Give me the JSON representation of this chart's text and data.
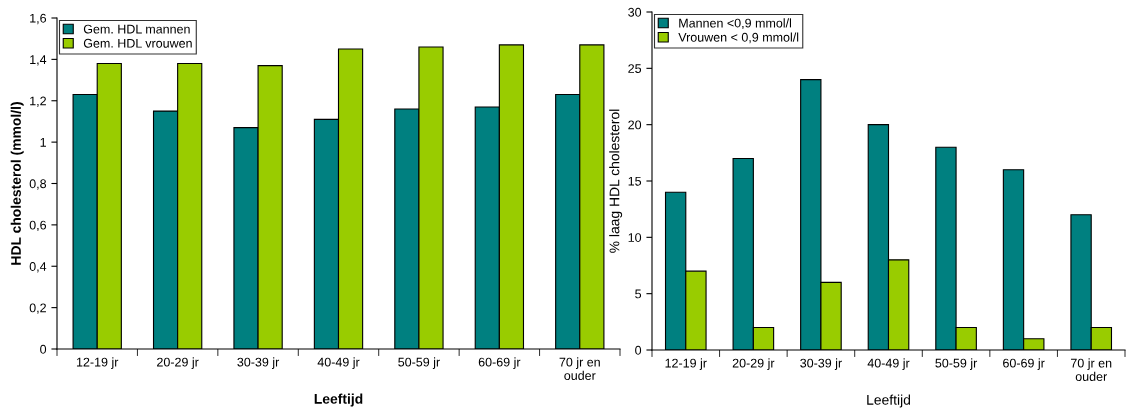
{
  "chart_data": [
    {
      "type": "bar",
      "xlabel": "Leeftijd",
      "ylabel": "HDL cholesterol (mmol/l)",
      "categories": [
        "12-19 jr",
        "20-29 jr",
        "30-39 jr",
        "40-49 jr",
        "50-59 jr",
        "60-69 jr",
        "70 jr en\nouder"
      ],
      "series": [
        {
          "name": "Gem. HDL mannen",
          "color": "#008080",
          "values": [
            1.23,
            1.15,
            1.07,
            1.11,
            1.16,
            1.17,
            1.23
          ]
        },
        {
          "name": "Gem. HDL vrouwen",
          "color": "#99cc00",
          "values": [
            1.38,
            1.38,
            1.37,
            1.45,
            1.46,
            1.47,
            1.47
          ]
        }
      ],
      "ylim": [
        0,
        1.6
      ],
      "yticks": [
        0,
        {
          "value": 0.2,
          "label": "0,2"
        },
        {
          "value": 0.4,
          "label": "0,4"
        },
        {
          "value": 0.6,
          "label": "0,6"
        },
        {
          "value": 0.8,
          "label": "0,8"
        },
        1,
        {
          "value": 1.2,
          "label": "1,2"
        },
        {
          "value": 1.4,
          "label": "1,4"
        },
        {
          "value": 1.6,
          "label": "1,6"
        }
      ],
      "grid": false,
      "legend": "top left"
    },
    {
      "type": "bar",
      "xlabel": "Leeftijd",
      "ylabel": "% laag HDL cholesterol",
      "categories": [
        "12-19 jr",
        "20-29 jr",
        "30-39 jr",
        "40-49 jr",
        "50-59 jr",
        "60-69 jr",
        "70 jr en\nouder"
      ],
      "series": [
        {
          "name": "Mannen <0,9 mmol/l",
          "color": "#008080",
          "values": [
            14,
            17,
            24,
            20,
            18,
            16,
            12
          ]
        },
        {
          "name": "Vrouwen < 0,9 mmol/l",
          "color": "#99cc00",
          "values": [
            7,
            2,
            6,
            8,
            2,
            1,
            2
          ]
        }
      ],
      "ylim": [
        0,
        30
      ],
      "yticks": [
        0,
        5,
        10,
        15,
        20,
        25,
        30
      ],
      "grid": false,
      "legend": "top left"
    }
  ]
}
